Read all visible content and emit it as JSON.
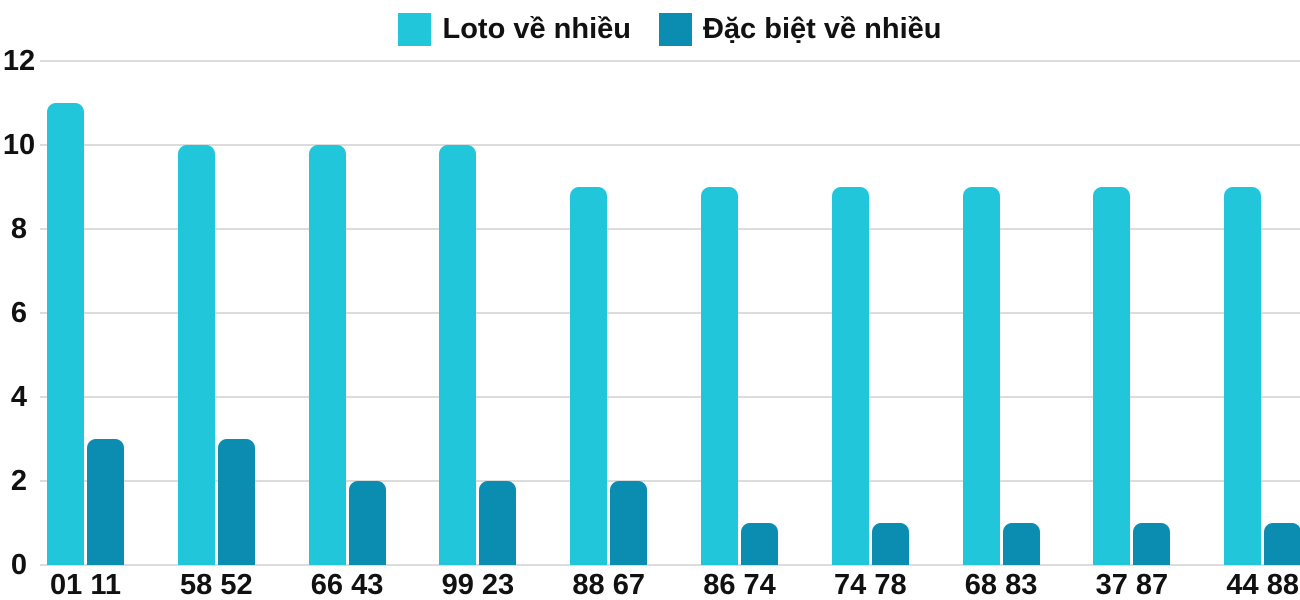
{
  "chart_data": {
    "type": "bar",
    "title": "",
    "categories": [
      "01 11",
      "58 52",
      "66 43",
      "99 23",
      "88 67",
      "86 74",
      "74 78",
      "68 83",
      "37 87",
      "44 88"
    ],
    "series": [
      {
        "name": "Loto về nhiều",
        "color": "#21c6da",
        "values": [
          11,
          10,
          10,
          10,
          9,
          9,
          9,
          9,
          9,
          9
        ]
      },
      {
        "name": "Đặc biệt về nhiều",
        "color": "#0a8db1",
        "values": [
          3,
          3,
          2,
          2,
          2,
          1,
          1,
          1,
          1,
          1
        ]
      }
    ],
    "xlabel": "",
    "ylabel": "",
    "ylim": [
      0,
      12
    ],
    "y_ticks": [
      0,
      2,
      4,
      6,
      8,
      10,
      12
    ],
    "grid": "horizontal",
    "gridline_color": "#dcdcdc",
    "legend_position": "top-center",
    "text_color": "#111111",
    "background_color": "#ffffff"
  }
}
